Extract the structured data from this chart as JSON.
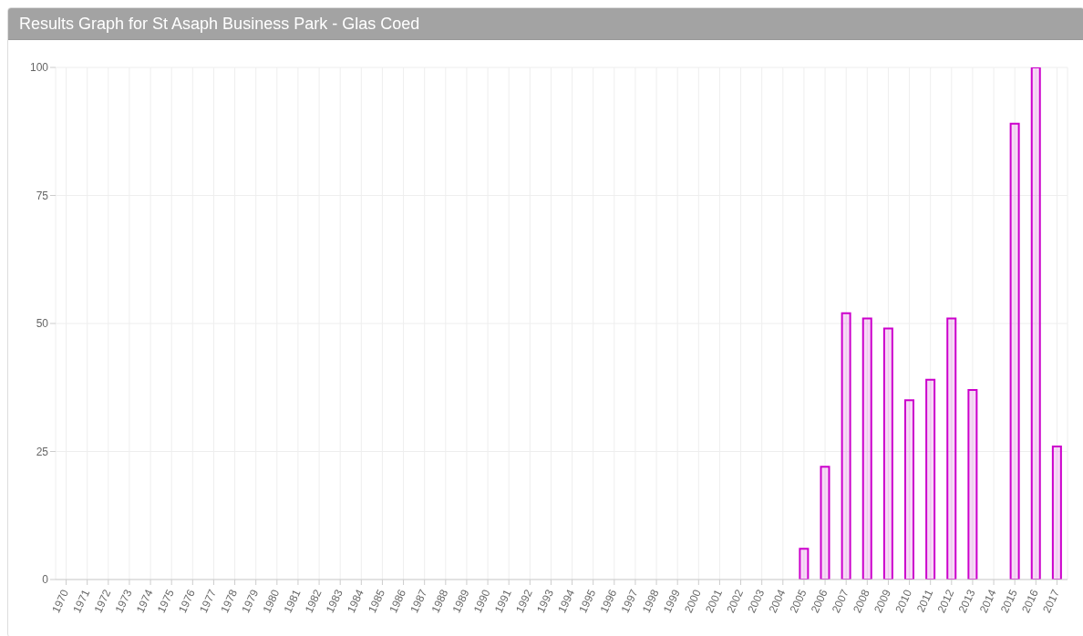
{
  "chart_data": {
    "type": "bar",
    "title": "Results Graph for St Asaph Business Park - Glas Coed",
    "categories": [
      "1970",
      "1971",
      "1972",
      "1973",
      "1974",
      "1975",
      "1976",
      "1977",
      "1978",
      "1979",
      "1980",
      "1981",
      "1982",
      "1983",
      "1984",
      "1985",
      "1986",
      "1987",
      "1988",
      "1989",
      "1990",
      "1991",
      "1992",
      "1993",
      "1994",
      "1995",
      "1996",
      "1997",
      "1998",
      "1999",
      "2000",
      "2001",
      "2002",
      "2003",
      "2004",
      "2005",
      "2006",
      "2007",
      "2008",
      "2009",
      "2010",
      "2011",
      "2012",
      "2013",
      "2014",
      "2015",
      "2016",
      "2017"
    ],
    "values": [
      0,
      0,
      0,
      0,
      0,
      0,
      0,
      0,
      0,
      0,
      0,
      0,
      0,
      0,
      0,
      0,
      0,
      0,
      0,
      0,
      0,
      0,
      0,
      0,
      0,
      0,
      0,
      0,
      0,
      0,
      0,
      0,
      0,
      0,
      0,
      6,
      22,
      52,
      51,
      49,
      35,
      39,
      51,
      37,
      0,
      89,
      100,
      26
    ],
    "color": "#cc00cc",
    "ylim": [
      0,
      100
    ],
    "yticks": [
      0,
      25,
      50,
      75,
      100
    ],
    "grid": true,
    "legend": false
  }
}
